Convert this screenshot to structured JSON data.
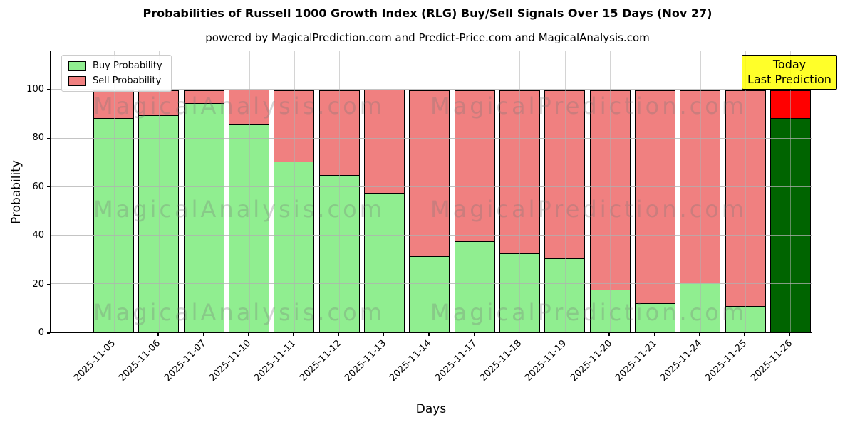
{
  "chart_data": {
    "type": "bar",
    "stacked": true,
    "title": "Probabilities of Russell 1000 Growth Index (RLG) Buy/Sell Signals Over 15 Days (Nov 27)",
    "subtitle": "powered by MagicalPrediction.com and Predict-Price.com and MagicalAnalysis.com",
    "xlabel": "Days",
    "ylabel": "Probability",
    "ylim": [
      0,
      116
    ],
    "yticks": [
      0,
      20,
      40,
      60,
      80,
      100
    ],
    "grid": true,
    "dashed_guide_y": 110,
    "legend_position": "upper-left",
    "categories": [
      "2025-11-05",
      "2025-11-06",
      "2025-11-07",
      "2025-11-10",
      "2025-11-11",
      "2025-11-12",
      "2025-11-13",
      "2025-11-14",
      "2025-11-17",
      "2025-11-18",
      "2025-11-19",
      "2025-11-20",
      "2025-11-21",
      "2025-11-24",
      "2025-11-25",
      "2025-11-26"
    ],
    "series": [
      {
        "name": "Buy Probability",
        "color": "#90ee90",
        "values": [
          88.5,
          89.5,
          94.5,
          86,
          70.5,
          65,
          57.5,
          31.5,
          37.5,
          32.5,
          30.5,
          17.5,
          12,
          20.5,
          11,
          88.5
        ]
      },
      {
        "name": "Sell Probability",
        "color": "#f08080",
        "values": [
          11.5,
          10.5,
          5.5,
          14,
          29.5,
          35,
          42.5,
          68.5,
          62.5,
          67.5,
          69.5,
          82.5,
          88,
          79.5,
          89,
          11.5
        ]
      }
    ],
    "highlight_bar": {
      "category": "2025-11-26",
      "index": 15,
      "buy_color": "#006400",
      "sell_color": "#ff0000"
    },
    "annotation": {
      "lines": [
        "Today",
        "Last Prediction"
      ],
      "bg_color": "#ffff00"
    },
    "colors": {
      "bar_edge": "#000000",
      "grid": "#b0b0b0",
      "dashed_line": "#8a8a8a"
    }
  },
  "watermarks": {
    "left_text": "MagicalAnalysis.com",
    "right_text": "MagicalPrediction.com",
    "rows": 3
  }
}
